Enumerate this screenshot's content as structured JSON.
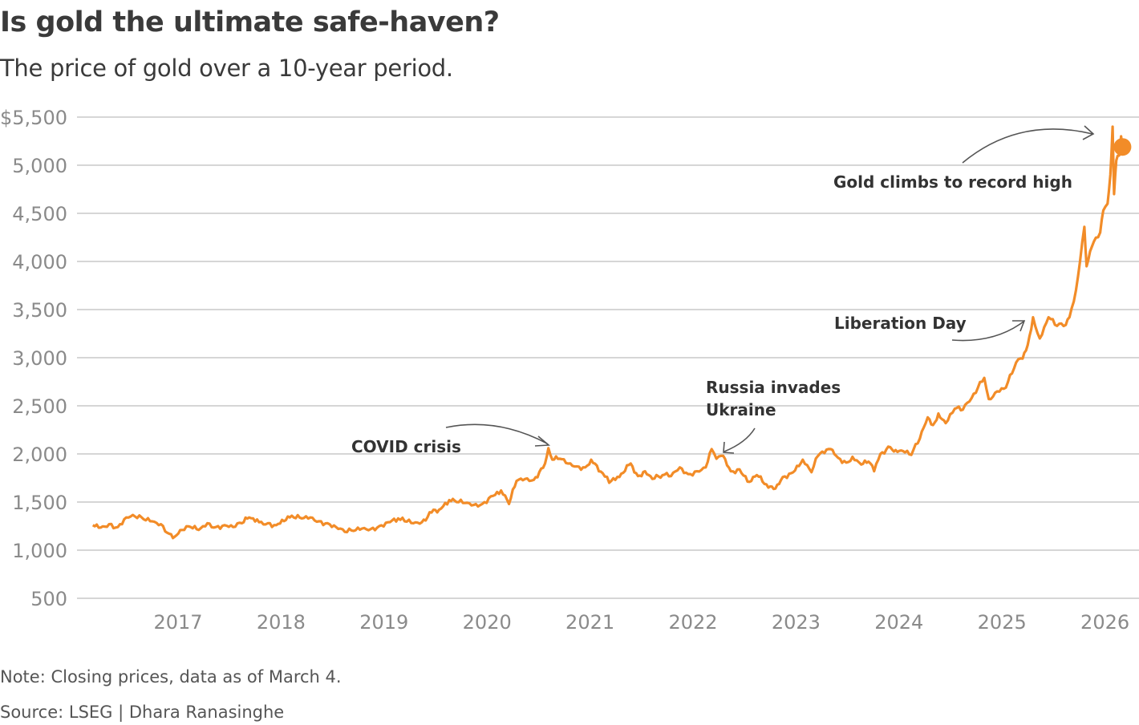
{
  "title": "Is gold the ultimate safe-haven?",
  "subtitle": "The price of gold over a 10-year period.",
  "note": "Note: Closing prices, data as of March 4.",
  "source": "Source: LSEG | Dhara Ranasinghe",
  "chart_data": {
    "type": "line",
    "title": "Is gold the ultimate safe-haven?",
    "xlabel": "",
    "ylabel": "",
    "ylim": [
      500,
      5500
    ],
    "y_ticks": [
      {
        "value": 5500,
        "label": "$5,500"
      },
      {
        "value": 5000,
        "label": "5,000"
      },
      {
        "value": 4500,
        "label": "4,500"
      },
      {
        "value": 4000,
        "label": "4,000"
      },
      {
        "value": 3500,
        "label": "3,500"
      },
      {
        "value": 3000,
        "label": "3,000"
      },
      {
        "value": 2500,
        "label": "2,500"
      },
      {
        "value": 2000,
        "label": "2,000"
      },
      {
        "value": 1500,
        "label": "1,500"
      },
      {
        "value": 1000,
        "label": "1,000"
      },
      {
        "value": 500,
        "label": "500"
      }
    ],
    "x_ticks": [
      "2017",
      "2018",
      "2019",
      "2020",
      "2021",
      "2022",
      "2023",
      "2024",
      "2025",
      "2026"
    ],
    "grid": "horizontal",
    "line_color": "#f28c28",
    "series": [
      {
        "points": [
          [
            "2016-03-04",
            1260
          ],
          [
            "2016-04-01",
            1235
          ],
          [
            "2016-05-01",
            1270
          ],
          [
            "2016-06-01",
            1240
          ],
          [
            "2016-07-01",
            1340
          ],
          [
            "2016-08-01",
            1350
          ],
          [
            "2016-09-01",
            1320
          ],
          [
            "2016-10-01",
            1300
          ],
          [
            "2016-11-01",
            1270
          ],
          [
            "2016-12-01",
            1170
          ],
          [
            "2016-12-20",
            1140
          ],
          [
            "2017-01-15",
            1210
          ],
          [
            "2017-02-15",
            1240
          ],
          [
            "2017-03-15",
            1210
          ],
          [
            "2017-04-15",
            1280
          ],
          [
            "2017-05-15",
            1240
          ],
          [
            "2017-06-15",
            1260
          ],
          [
            "2017-07-15",
            1240
          ],
          [
            "2017-08-15",
            1280
          ],
          [
            "2017-09-10",
            1340
          ],
          [
            "2017-10-15",
            1290
          ],
          [
            "2017-11-15",
            1280
          ],
          [
            "2017-12-15",
            1260
          ],
          [
            "2018-01-25",
            1350
          ],
          [
            "2018-02-15",
            1340
          ],
          [
            "2018-03-15",
            1330
          ],
          [
            "2018-04-15",
            1340
          ],
          [
            "2018-05-15",
            1300
          ],
          [
            "2018-06-15",
            1280
          ],
          [
            "2018-07-15",
            1240
          ],
          [
            "2018-08-15",
            1190
          ],
          [
            "2018-09-15",
            1200
          ],
          [
            "2018-10-15",
            1225
          ],
          [
            "2018-11-15",
            1220
          ],
          [
            "2018-12-15",
            1250
          ],
          [
            "2019-01-15",
            1290
          ],
          [
            "2019-02-20",
            1330
          ],
          [
            "2019-03-15",
            1300
          ],
          [
            "2019-04-15",
            1280
          ],
          [
            "2019-05-15",
            1290
          ],
          [
            "2019-06-25",
            1420
          ],
          [
            "2019-07-15",
            1420
          ],
          [
            "2019-08-20",
            1520
          ],
          [
            "2019-09-15",
            1500
          ],
          [
            "2019-10-15",
            1490
          ],
          [
            "2019-11-15",
            1470
          ],
          [
            "2019-12-15",
            1480
          ],
          [
            "2020-01-15",
            1560
          ],
          [
            "2020-02-20",
            1620
          ],
          [
            "2020-03-19",
            1480
          ],
          [
            "2020-04-15",
            1720
          ],
          [
            "2020-05-15",
            1740
          ],
          [
            "2020-06-15",
            1730
          ],
          [
            "2020-07-25",
            1900
          ],
          [
            "2020-08-06",
            2060
          ],
          [
            "2020-08-20",
            1940
          ],
          [
            "2020-09-15",
            1950
          ],
          [
            "2020-10-15",
            1900
          ],
          [
            "2020-11-15",
            1870
          ],
          [
            "2020-12-15",
            1860
          ],
          [
            "2021-01-05",
            1940
          ],
          [
            "2021-02-15",
            1800
          ],
          [
            "2021-03-10",
            1700
          ],
          [
            "2021-04-15",
            1760
          ],
          [
            "2021-05-25",
            1900
          ],
          [
            "2021-06-20",
            1770
          ],
          [
            "2021-07-15",
            1820
          ],
          [
            "2021-08-10",
            1740
          ],
          [
            "2021-09-15",
            1780
          ],
          [
            "2021-10-15",
            1770
          ],
          [
            "2021-11-15",
            1860
          ],
          [
            "2021-12-15",
            1790
          ],
          [
            "2022-01-15",
            1820
          ],
          [
            "2022-02-15",
            1860
          ],
          [
            "2022-03-08",
            2050
          ],
          [
            "2022-03-25",
            1950
          ],
          [
            "2022-04-18",
            1980
          ],
          [
            "2022-05-15",
            1820
          ],
          [
            "2022-06-15",
            1840
          ],
          [
            "2022-07-20",
            1710
          ],
          [
            "2022-08-15",
            1780
          ],
          [
            "2022-09-25",
            1650
          ],
          [
            "2022-10-20",
            1640
          ],
          [
            "2022-11-15",
            1760
          ],
          [
            "2022-12-15",
            1800
          ],
          [
            "2023-01-25",
            1940
          ],
          [
            "2023-02-25",
            1810
          ],
          [
            "2023-03-20",
            1980
          ],
          [
            "2023-05-04",
            2050
          ],
          [
            "2023-05-30",
            1960
          ],
          [
            "2023-06-28",
            1910
          ],
          [
            "2023-07-20",
            1970
          ],
          [
            "2023-08-20",
            1890
          ],
          [
            "2023-09-15",
            1920
          ],
          [
            "2023-10-05",
            1820
          ],
          [
            "2023-10-27",
            2000
          ],
          [
            "2023-12-01",
            2070
          ],
          [
            "2023-12-20",
            2040
          ],
          [
            "2024-01-15",
            2030
          ],
          [
            "2024-02-14",
            1990
          ],
          [
            "2024-03-15",
            2160
          ],
          [
            "2024-04-12",
            2380
          ],
          [
            "2024-05-01",
            2300
          ],
          [
            "2024-05-20",
            2420
          ],
          [
            "2024-06-15",
            2320
          ],
          [
            "2024-07-17",
            2470
          ],
          [
            "2024-08-15",
            2460
          ],
          [
            "2024-09-15",
            2580
          ],
          [
            "2024-10-30",
            2790
          ],
          [
            "2024-11-15",
            2570
          ],
          [
            "2024-12-15",
            2650
          ],
          [
            "2025-01-15",
            2690
          ],
          [
            "2025-02-20",
            2950
          ],
          [
            "2025-03-15",
            2990
          ],
          [
            "2025-04-02",
            3130
          ],
          [
            "2025-04-21",
            3420
          ],
          [
            "2025-05-15",
            3200
          ],
          [
            "2025-06-15",
            3420
          ],
          [
            "2025-07-15",
            3330
          ],
          [
            "2025-08-15",
            3340
          ],
          [
            "2025-08-28",
            3420
          ],
          [
            "2025-09-20",
            3700
          ],
          [
            "2025-10-20",
            4360
          ],
          [
            "2025-10-28",
            3950
          ],
          [
            "2025-11-15",
            4150
          ],
          [
            "2025-12-15",
            4300
          ],
          [
            "2025-12-26",
            4530
          ],
          [
            "2026-01-10",
            4600
          ],
          [
            "2026-01-20",
            4900
          ],
          [
            "2026-01-28",
            5400
          ],
          [
            "2026-02-02",
            4700
          ],
          [
            "2026-02-10",
            5050
          ],
          [
            "2026-02-20",
            5100
          ],
          [
            "2026-02-27",
            5300
          ],
          [
            "2026-03-04",
            5190
          ]
        ]
      }
    ],
    "annotations": [
      {
        "text": "COVID crisis",
        "date": "2020-08-06"
      },
      {
        "text": "Russia invades Ukraine",
        "lines": [
          "Russia invades",
          "Ukraine"
        ],
        "date": "2022-03-08"
      },
      {
        "text": "Liberation Day",
        "date": "2025-04-02"
      },
      {
        "text": "Gold climbs to record high",
        "date": "2026-01-28"
      }
    ],
    "last_point_marker": true
  }
}
